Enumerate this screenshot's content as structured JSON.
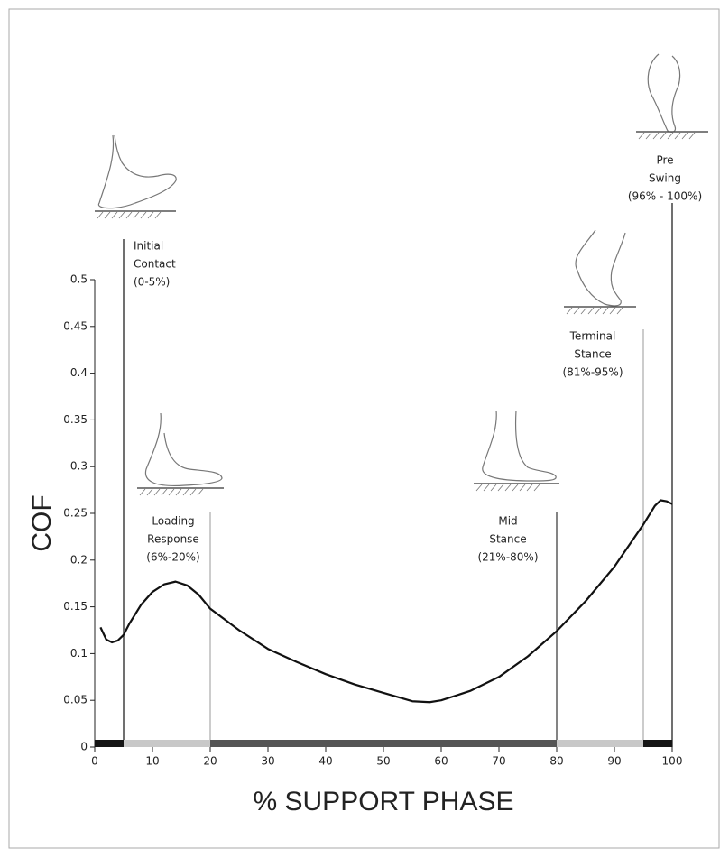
{
  "chart_data": {
    "type": "line",
    "x": [
      1,
      2,
      3,
      4,
      5,
      6,
      8,
      10,
      12,
      14,
      16,
      18,
      20,
      25,
      30,
      35,
      40,
      45,
      50,
      55,
      58,
      60,
      65,
      70,
      75,
      80,
      85,
      90,
      95,
      97,
      98,
      99,
      100
    ],
    "series": [
      {
        "color": "#111111",
        "values": [
          0.128,
          0.115,
          0.112,
          0.114,
          0.12,
          0.132,
          0.152,
          0.166,
          0.174,
          0.177,
          0.173,
          0.163,
          0.148,
          0.125,
          0.105,
          0.091,
          0.078,
          0.067,
          0.058,
          0.049,
          0.048,
          0.05,
          0.06,
          0.075,
          0.097,
          0.124,
          0.156,
          0.193,
          0.238,
          0.258,
          0.264,
          0.263,
          0.26
        ]
      }
    ],
    "xlim": [
      0,
      100
    ],
    "ylim": [
      0,
      0.5
    ],
    "xticks": [
      0,
      10,
      20,
      30,
      40,
      50,
      60,
      70,
      80,
      90,
      100
    ],
    "yticks": [
      0,
      0.05,
      0.1,
      0.15,
      0.2,
      0.25,
      0.3,
      0.35,
      0.4,
      0.45,
      0.5
    ],
    "xlabel": "% SUPPORT PHASE",
    "ylabel": "COF",
    "phases": [
      {
        "label": [
          "Initial",
          "Contact",
          "(0-5%)"
        ],
        "start": 0,
        "end": 5,
        "color": "#151515"
      },
      {
        "label": [
          "Loading",
          "Response",
          "(6%-20%)"
        ],
        "start": 5,
        "end": 20,
        "color": "#c8c8c8"
      },
      {
        "label": [
          "Mid",
          "Stance",
          "(21%-80%)"
        ],
        "start": 20,
        "end": 80,
        "color": "#555555"
      },
      {
        "label": [
          "Terminal",
          "Stance",
          "(81%-95%)"
        ],
        "start": 80,
        "end": 95,
        "color": "#c8c8c8"
      },
      {
        "label": [
          "Pre",
          "Swing",
          "(96% - 100%)"
        ],
        "start": 95,
        "end": 100,
        "color": "#151515"
      }
    ]
  }
}
